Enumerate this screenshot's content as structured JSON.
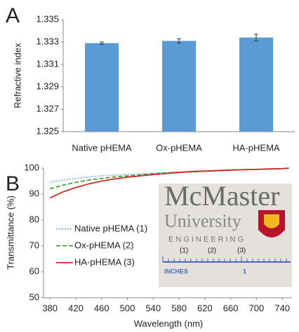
{
  "chart_data": [
    {
      "type": "bar",
      "panel": "A",
      "ylabel": "Refractive index",
      "categories": [
        "Native pHEMA",
        "Ox-pHEMA",
        "HA-pHEMA"
      ],
      "values": [
        1.3329,
        1.3331,
        1.3334
      ],
      "errors": [
        0.0001,
        0.0002,
        0.0003
      ],
      "color": "#5b9bd5",
      "ylim": [
        1.325,
        1.335
      ],
      "yticks": [
        1.325,
        1.327,
        1.329,
        1.331,
        1.333,
        1.335
      ]
    },
    {
      "type": "line",
      "panel": "B",
      "xlabel": "Wavelength (nm)",
      "ylabel": "Transmittance (%)",
      "x": [
        380,
        400,
        420,
        440,
        460,
        480,
        500,
        520,
        540,
        560,
        580,
        600,
        620,
        640,
        660,
        680,
        700,
        720,
        740,
        750
      ],
      "series": [
        {
          "name": "Native pHEMA (1)",
          "color": "#7fb2e5",
          "style": "dotted",
          "values": [
            94.5,
            95.4,
            96,
            96.6,
            97,
            97.3,
            97.6,
            97.8,
            98,
            98.3,
            98.5,
            98.8,
            99,
            99.1,
            99.3,
            99.4,
            99.5,
            99.6,
            99.7,
            99.8
          ]
        },
        {
          "name": "Ox-pHEMA (2)",
          "color": "#4aa03c",
          "style": "dashed",
          "values": [
            92,
            93.4,
            94.5,
            95.4,
            96,
            96.6,
            97,
            97.4,
            97.8,
            98.1,
            98.4,
            98.7,
            98.9,
            99.1,
            99.3,
            99.4,
            99.5,
            99.6,
            99.8,
            99.9
          ]
        },
        {
          "name": "HA-pHEMA (3)",
          "color": "#d42a2a",
          "style": "solid",
          "values": [
            88.5,
            90.8,
            92.5,
            93.9,
            95,
            95.8,
            96.5,
            97,
            97.5,
            97.9,
            98.3,
            98.6,
            98.8,
            99,
            99.2,
            99.4,
            99.5,
            99.7,
            99.8,
            100
          ]
        }
      ],
      "xlim": [
        370,
        755
      ],
      "ylim": [
        50,
        100
      ],
      "xticks": [
        380,
        420,
        460,
        500,
        540,
        580,
        620,
        660,
        700,
        740
      ],
      "yticks": [
        50,
        60,
        70,
        80,
        90,
        100
      ],
      "legend": "left"
    }
  ],
  "photo": {
    "title": "McMaster",
    "subtitle": "University",
    "faculty": "ENGINEERING",
    "samples": [
      "(1)",
      "(2)",
      "(3)"
    ],
    "ruler_unit": "INCHES",
    "ruler_mark": "1"
  }
}
